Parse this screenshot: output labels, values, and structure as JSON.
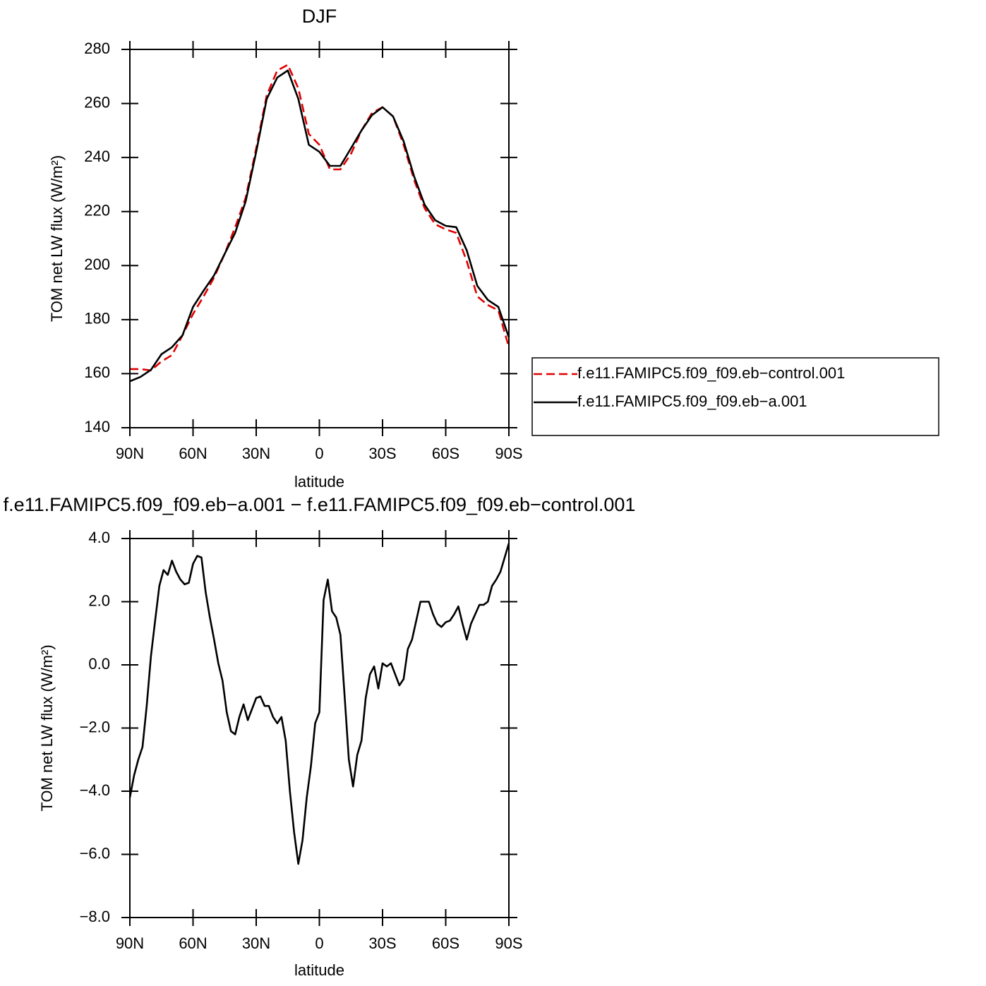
{
  "chart_data": [
    {
      "type": "line",
      "title": "DJF",
      "x_label": "latitude",
      "y_label": "TOM net LW flux (W/m²)",
      "x": [
        90,
        85,
        80,
        75,
        70,
        65,
        60,
        55,
        50,
        45,
        40,
        35,
        30,
        25,
        20,
        15,
        10,
        5,
        0,
        -5,
        -10,
        -15,
        -20,
        -25,
        -30,
        -35,
        -40,
        -45,
        -50,
        -55,
        -60,
        -65,
        -70,
        -75,
        -80,
        -85,
        -90
      ],
      "series": [
        {
          "name": "f.e11.FAMIPC5.f09_f09.eb−control.001",
          "color": "#e00000",
          "dashed": true,
          "values": [
            161.7,
            161.7,
            161.2,
            164.5,
            166.9,
            174.2,
            182.1,
            188.6,
            195.6,
            204.3,
            214.2,
            225.1,
            243.4,
            263,
            272.2,
            274.3,
            265.6,
            248.7,
            244.7,
            235.6,
            235.6,
            241.3,
            250,
            256.5,
            258.6,
            255.2,
            244.7,
            231.7,
            221.2,
            215.3,
            213.4,
            212.1,
            201.6,
            188.6,
            185.4,
            183.4,
            169.8
          ]
        },
        {
          "name": "f.e11.FAMIPC5.f09_f09.eb−a.001",
          "color": "#000000",
          "dashed": false,
          "values": [
            157.2,
            158.8,
            161.4,
            167.2,
            169.8,
            174.2,
            184.7,
            190.7,
            196.4,
            204.3,
            212.1,
            223.8,
            242.1,
            261.7,
            269.6,
            272.2,
            261.7,
            244.7,
            242.1,
            236.9,
            236.9,
            243.4,
            250,
            255.7,
            258.6,
            255.2,
            246,
            233,
            222.5,
            216.8,
            214.7,
            214.2,
            205.6,
            192.5,
            187.3,
            184.7,
            173.4
          ]
        }
      ],
      "xlim": [
        90,
        -90
      ],
      "xticks": [
        {
          "value": 90,
          "label": "90N"
        },
        {
          "value": 60,
          "label": "60N"
        },
        {
          "value": 30,
          "label": "30N"
        },
        0,
        {
          "value": -30,
          "label": "30S"
        },
        {
          "value": -60,
          "label": "60S"
        },
        {
          "value": -90,
          "label": "90S"
        }
      ],
      "ylim": [
        140,
        280
      ],
      "yticks": [
        140,
        160,
        180,
        200,
        220,
        240,
        260,
        280
      ],
      "legend": "right"
    },
    {
      "type": "line",
      "title": "f.e11.FAMIPC5.f09_f09.eb−a.001  −  f.e11.FAMIPC5.f09_f09.eb−control.001",
      "x_label": "latitude",
      "y_label": "TOM net LW flux (W/m²)",
      "x": [
        90,
        88,
        86,
        84,
        82,
        80,
        78,
        76,
        74,
        72,
        70,
        68,
        66,
        64,
        62,
        60,
        58,
        56,
        54,
        52,
        50,
        48,
        46,
        44,
        42,
        40,
        38,
        36,
        34,
        32,
        30,
        28,
        26,
        24,
        22,
        20,
        18,
        16,
        14,
        12,
        10,
        8,
        6,
        4,
        2,
        0,
        -2,
        -4,
        -6,
        -8,
        -10,
        -12,
        -14,
        -16,
        -18,
        -20,
        -22,
        -24,
        -26,
        -28,
        -30,
        -32,
        -34,
        -36,
        -38,
        -40,
        -42,
        -44,
        -46,
        -48,
        -50,
        -52,
        -54,
        -56,
        -58,
        -60,
        -62,
        -64,
        -66,
        -68,
        -70,
        -72,
        -74,
        -76,
        -78,
        -80,
        -82,
        -84,
        -86,
        -88,
        -90
      ],
      "series": [
        {
          "name": null,
          "color": "#000000",
          "dashed": false,
          "values": [
            -4.2,
            -3.5,
            -3.0,
            -2.6,
            -1.3,
            0.27,
            1.4,
            2.5,
            3.0,
            2.85,
            3.3,
            2.95,
            2.7,
            2.55,
            2.6,
            3.2,
            3.45,
            3.4,
            2.3,
            1.5,
            0.8,
            0.05,
            -0.5,
            -1.5,
            -2.1,
            -2.2,
            -1.65,
            -1.25,
            -1.75,
            -1.4,
            -1.05,
            -1.0,
            -1.3,
            -1.3,
            -1.65,
            -1.85,
            -1.65,
            -2.4,
            -4.0,
            -5.3,
            -6.3,
            -5.55,
            -4.2,
            -3.2,
            -1.85,
            -1.5,
            2.05,
            2.7,
            1.7,
            1.5,
            0.95,
            -1.0,
            -3.0,
            -3.85,
            -2.85,
            -2.4,
            -1.05,
            -0.3,
            -0.05,
            -0.75,
            0.05,
            -0.05,
            0.05,
            -0.3,
            -0.65,
            -0.45,
            0.5,
            0.8,
            1.4,
            2.0,
            2.0,
            2.0,
            1.6,
            1.3,
            1.2,
            1.35,
            1.4,
            1.6,
            1.85,
            1.3,
            0.8,
            1.3,
            1.6,
            1.9,
            1.9,
            2.0,
            2.5,
            2.7,
            2.95,
            3.4,
            3.85
          ]
        }
      ],
      "xlim": [
        90,
        -90
      ],
      "xticks": [
        {
          "value": 90,
          "label": "90N"
        },
        {
          "value": 60,
          "label": "60N"
        },
        {
          "value": 30,
          "label": "30N"
        },
        0,
        {
          "value": -30,
          "label": "30S"
        },
        {
          "value": -60,
          "label": "60S"
        },
        {
          "value": -90,
          "label": "90S"
        }
      ],
      "ylim": [
        -8,
        4
      ],
      "yticks": [
        {
          "value": -8,
          "label": "−8.0"
        },
        {
          "value": -6,
          "label": "−6.0"
        },
        {
          "value": -4,
          "label": "−4.0"
        },
        {
          "value": -2,
          "label": "−2.0"
        },
        {
          "value": 0,
          "label": "0.0"
        },
        {
          "value": 2,
          "label": "2.0"
        },
        {
          "value": 4,
          "label": "4.0"
        }
      ]
    }
  ]
}
